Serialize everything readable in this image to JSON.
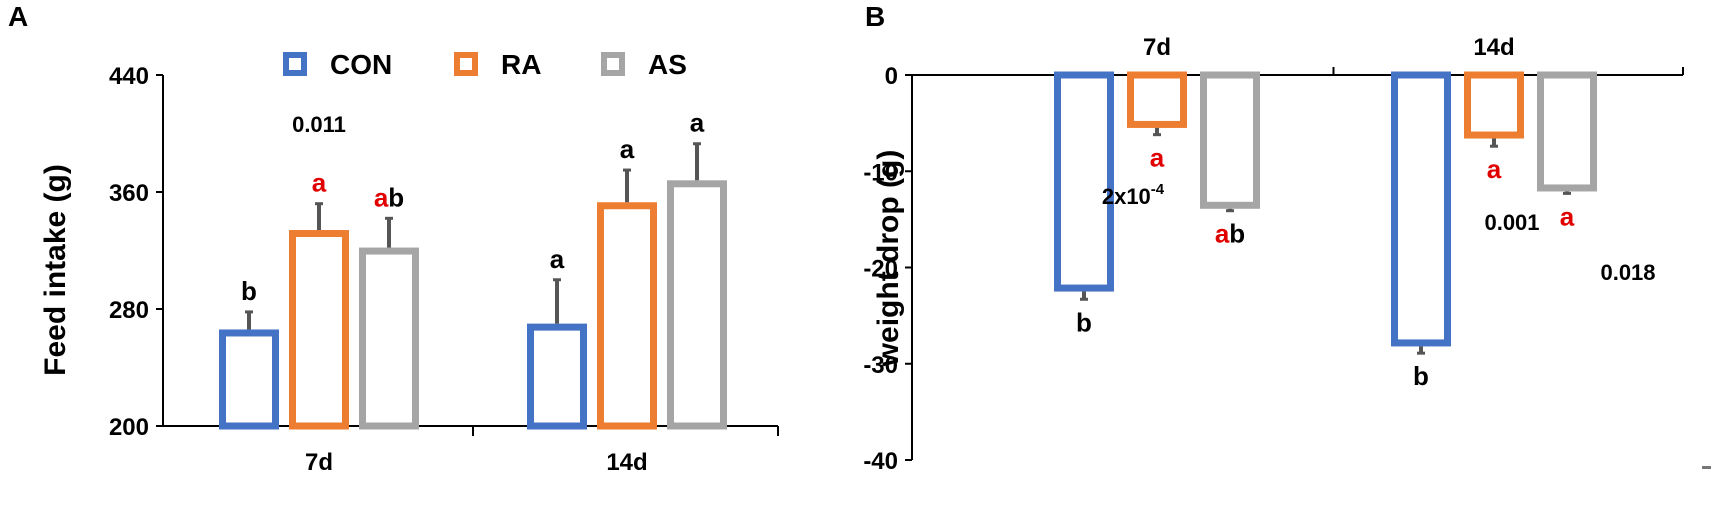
{
  "colors": {
    "CON": "#4472C4",
    "RA": "#ED7D31",
    "AS": "#A5A5A5",
    "error": "#555555",
    "sig_red": "#E00000",
    "axis": "#000000"
  },
  "legend": [
    {
      "name": "CON",
      "color_key": "CON"
    },
    {
      "name": "RA",
      "color_key": "RA"
    },
    {
      "name": "AS",
      "color_key": "AS"
    }
  ],
  "chart_data": [
    {
      "panel": "A",
      "type": "bar",
      "ylabel": "Feed intake (g)",
      "xlabel": "",
      "ylim": [
        200,
        440
      ],
      "yticks": [
        "200",
        "280",
        "360",
        "440"
      ],
      "categories": [
        "7d",
        "14d"
      ],
      "series": [
        {
          "name": "CON",
          "values": [
            266,
            270
          ],
          "errors": [
            12,
            30
          ],
          "labels": [
            [
              {
                "t": "b",
                "red": false
              }
            ],
            [
              {
                "t": "a",
                "red": false
              }
            ]
          ]
        },
        {
          "name": "RA",
          "values": [
            334,
            353
          ],
          "errors": [
            18,
            22
          ],
          "labels": [
            [
              {
                "t": "a",
                "red": true
              }
            ],
            [
              {
                "t": "a",
                "red": false
              }
            ]
          ]
        },
        {
          "name": "AS",
          "values": [
            322,
            368
          ],
          "errors": [
            20,
            25
          ],
          "labels": [
            [
              {
                "t": "a",
                "red": true
              },
              {
                "t": "b",
                "red": false
              }
            ],
            [
              {
                "t": "a",
                "red": false
              }
            ]
          ]
        }
      ],
      "annotations": [
        {
          "text": "0.011",
          "category": "7d"
        }
      ]
    },
    {
      "panel": "B",
      "type": "bar",
      "ylabel": "weight drop (g)",
      "xlabel": "",
      "ylim": [
        -40,
        0
      ],
      "yticks": [
        "0",
        "-10",
        "-20",
        "-30",
        "-40"
      ],
      "categories": [
        "7d",
        "14d"
      ],
      "series": [
        {
          "name": "CON",
          "values": [
            -22.5,
            -28.2
          ],
          "errors": [
            0.8,
            0.7
          ],
          "labels": [
            [
              {
                "t": "b",
                "red": false
              }
            ],
            [
              {
                "t": "b",
                "red": false
              }
            ]
          ]
        },
        {
          "name": "RA",
          "values": [
            -5.5,
            -6.6
          ],
          "errors": [
            0.7,
            0.8
          ],
          "labels": [
            [
              {
                "t": "a",
                "red": true
              }
            ],
            [
              {
                "t": "a",
                "red": true
              }
            ]
          ]
        },
        {
          "name": "AS",
          "values": [
            -13.9,
            -12.1
          ],
          "errors": [
            0.2,
            0.2
          ],
          "labels": [
            [
              {
                "t": "a",
                "red": true
              },
              {
                "t": "b",
                "red": false
              }
            ],
            [
              {
                "t": "a",
                "red": true
              }
            ]
          ]
        }
      ],
      "annotations": [
        {
          "text": "2x10",
          "sup": "-4",
          "category": "7d"
        },
        {
          "text": "0.001",
          "category": "14d"
        },
        {
          "text": "0.018",
          "category": "14d"
        }
      ]
    }
  ]
}
